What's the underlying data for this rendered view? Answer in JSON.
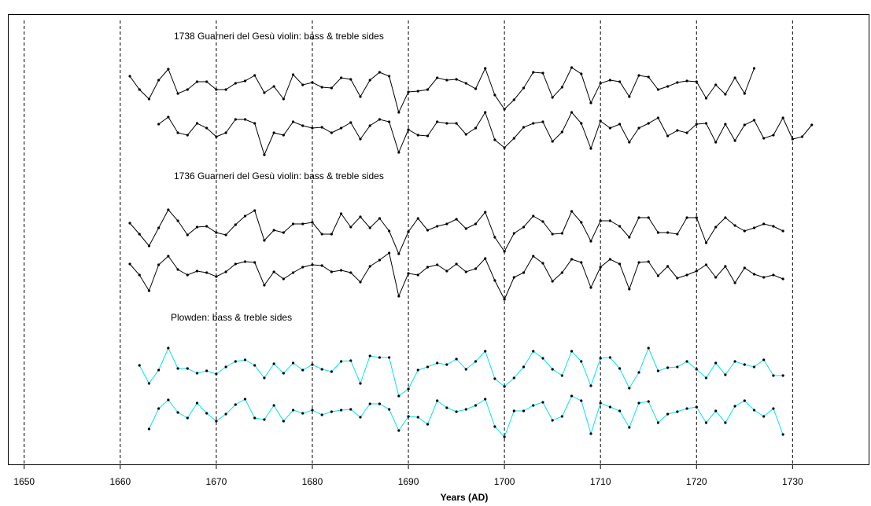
{
  "chart_data": {
    "type": "line",
    "x_label": "Years (AD)",
    "annotations": [
      "1738 Guarneri del Gesù violin: bass & treble sides",
      "1736 Guarneri del Gesù violin: bass & treble sides",
      "Plowden: bass & treble sides"
    ],
    "xlim": [
      1648.3,
      1738
    ],
    "xticks": [
      1650,
      1660,
      1670,
      1680,
      1690,
      1700,
      1710,
      1720,
      1730
    ],
    "ylim": [
      590,
      18
    ],
    "grid": true,
    "marker_color": "#000000",
    "x": [
      1661,
      1662,
      1663,
      1664,
      1665,
      1666,
      1667,
      1668,
      1669,
      1670,
      1671,
      1672,
      1673,
      1674,
      1675,
      1676,
      1677,
      1678,
      1679,
      1680,
      1681,
      1682,
      1683,
      1684,
      1685,
      1686,
      1687,
      1688,
      1689,
      1690,
      1691,
      1692,
      1693,
      1694,
      1695,
      1696,
      1697,
      1698,
      1699,
      1700,
      1701,
      1702,
      1703,
      1704,
      1705,
      1706,
      1707,
      1708,
      1709,
      1710,
      1711,
      1712,
      1713,
      1714,
      1715,
      1716,
      1717,
      1718,
      1719,
      1720,
      1721,
      1722,
      1723,
      1724,
      1725,
      1726,
      1727,
      1728,
      1729,
      1730,
      1731,
      1732
    ],
    "series": [
      {
        "color": "#000000",
        "values": [
          97,
          114,
          126,
          102,
          88,
          119,
          114,
          104,
          104,
          114,
          114,
          106,
          103,
          96,
          118,
          110,
          126,
          95,
          108,
          105,
          111,
          112,
          99,
          101,
          123,
          102,
          92,
          97,
          143,
          117,
          116,
          114,
          99,
          102,
          101,
          106,
          113,
          87,
          121,
          139,
          127,
          112,
          92,
          93,
          124,
          111,
          86,
          94,
          131,
          106,
          102,
          104,
          123,
          96,
          98,
          114,
          110,
          105,
          103,
          104,
          125,
          108,
          120,
          99,
          119,
          87,
          null,
          null,
          null,
          null,
          null,
          null
        ]
      },
      {
        "color": "#000000",
        "values": [
          null,
          null,
          null,
          158,
          149,
          169,
          172,
          157,
          163,
          174,
          169,
          152,
          152,
          157,
          197,
          169,
          172,
          155,
          160,
          163,
          162,
          169,
          163,
          156,
          177,
          160,
          152,
          155,
          194,
          165,
          172,
          173,
          155,
          157,
          157,
          171,
          163,
          143,
          178,
          188,
          176,
          162,
          157,
          155,
          180,
          168,
          143,
          157,
          189,
          154,
          163,
          158,
          181,
          163,
          157,
          150,
          173,
          166,
          169,
          158,
          157,
          181,
          158,
          179,
          159,
          153,
          176,
          172,
          150,
          177,
          174,
          159
        ]
      },
      {
        "color": "#000000",
        "values": [
          284,
          298,
          313,
          290,
          267,
          281,
          299,
          289,
          288,
          296,
          299,
          286,
          275,
          268,
          306,
          293,
          296,
          285,
          285,
          283,
          298,
          298,
          272,
          289,
          276,
          290,
          278,
          294,
          323,
          295,
          278,
          293,
          288,
          285,
          279,
          291,
          285,
          270,
          302,
          320,
          297,
          289,
          275,
          282,
          298,
          297,
          269,
          283,
          307,
          281,
          281,
          288,
          302,
          277,
          277,
          296,
          296,
          298,
          277,
          277,
          309,
          289,
          277,
          287,
          294,
          290,
          285,
          288,
          294,
          null,
          null,
          null
        ]
      },
      {
        "color": "#000000",
        "values": [
          336,
          350,
          370,
          337,
          326,
          343,
          350,
          345,
          347,
          352,
          346,
          336,
          333,
          334,
          363,
          346,
          355,
          347,
          340,
          337,
          338,
          346,
          344,
          347,
          359,
          339,
          331,
          322,
          377,
          348,
          350,
          340,
          337,
          345,
          336,
          346,
          342,
          329,
          357,
          381,
          353,
          347,
          326,
          335,
          358,
          347,
          330,
          334,
          366,
          340,
          330,
          336,
          368,
          334,
          333,
          351,
          339,
          354,
          350,
          345,
          337,
          353,
          339,
          360,
          341,
          349,
          353,
          350,
          355,
          null,
          null,
          null
        ]
      },
      {
        "color": "#00e5ee",
        "values": [
          null,
          465,
          488,
          471,
          443,
          469,
          469,
          475,
          472,
          476,
          467,
          460,
          458,
          465,
          481,
          463,
          475,
          462,
          471,
          464,
          470,
          473,
          460,
          459,
          488,
          453,
          455,
          455,
          504,
          495,
          471,
          467,
          462,
          464,
          457,
          470,
          460,
          447,
          482,
          492,
          481,
          467,
          447,
          456,
          470,
          478,
          447,
          460,
          491,
          456,
          455,
          469,
          494,
          474,
          443,
          472,
          468,
          467,
          460,
          470,
          481,
          462,
          477,
          460,
          464,
          467,
          458,
          478,
          478,
          null,
          null,
          null
        ]
      },
      {
        "color": "#00e5ee",
        "values": [
          null,
          null,
          546,
          520,
          509,
          525,
          532,
          513,
          526,
          536,
          527,
          515,
          508,
          532,
          534,
          516,
          536,
          522,
          526,
          522,
          528,
          524,
          522,
          521,
          531,
          514,
          514,
          521,
          548,
          530,
          531,
          540,
          510,
          519,
          524,
          521,
          516,
          508,
          543,
          556,
          523,
          523,
          516,
          512,
          535,
          530,
          504,
          510,
          552,
          513,
          518,
          523,
          544,
          513,
          511,
          538,
          527,
          524,
          520,
          518,
          538,
          523,
          538,
          517,
          510,
          522,
          530,
          520,
          553,
          null,
          null,
          null
        ]
      }
    ]
  }
}
